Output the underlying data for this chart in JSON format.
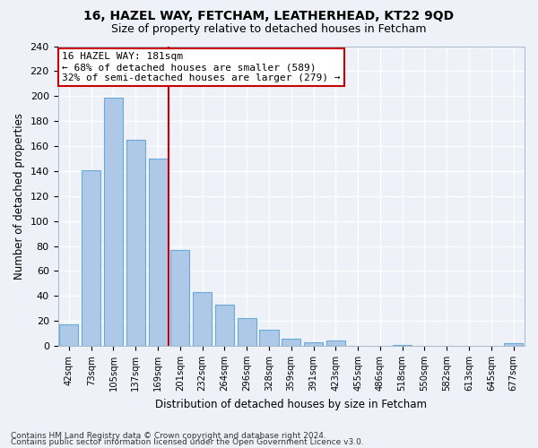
{
  "title1": "16, HAZEL WAY, FETCHAM, LEATHERHEAD, KT22 9QD",
  "title2": "Size of property relative to detached houses in Fetcham",
  "xlabel": "Distribution of detached houses by size in Fetcham",
  "ylabel": "Number of detached properties",
  "categories": [
    "42sqm",
    "73sqm",
    "105sqm",
    "137sqm",
    "169sqm",
    "201sqm",
    "232sqm",
    "264sqm",
    "296sqm",
    "328sqm",
    "359sqm",
    "391sqm",
    "423sqm",
    "455sqm",
    "486sqm",
    "518sqm",
    "550sqm",
    "582sqm",
    "613sqm",
    "645sqm",
    "677sqm"
  ],
  "values": [
    17,
    141,
    199,
    165,
    150,
    77,
    43,
    33,
    22,
    13,
    6,
    3,
    4,
    0,
    0,
    1,
    0,
    0,
    0,
    0,
    2
  ],
  "bar_color": "#aec8e8",
  "bar_edge_color": "#6aaad4",
  "vline_x": 4.5,
  "vline_color": "#cc0000",
  "annotation_line1": "16 HAZEL WAY: 181sqm",
  "annotation_line2": "← 68% of detached houses are smaller (589)",
  "annotation_line3": "32% of semi-detached houses are larger (279) →",
  "annotation_box_color": "#ffffff",
  "annotation_box_edge": "#cc0000",
  "ylim": [
    0,
    240
  ],
  "yticks": [
    0,
    20,
    40,
    60,
    80,
    100,
    120,
    140,
    160,
    180,
    200,
    220,
    240
  ],
  "footer1": "Contains HM Land Registry data © Crown copyright and database right 2024.",
  "footer2": "Contains public sector information licensed under the Open Government Licence v3.0.",
  "bg_color": "#eef2f8",
  "plot_bg_color": "#eef2f8",
  "grid_color": "#ffffff",
  "title1_fontsize": 10,
  "title2_fontsize": 9
}
